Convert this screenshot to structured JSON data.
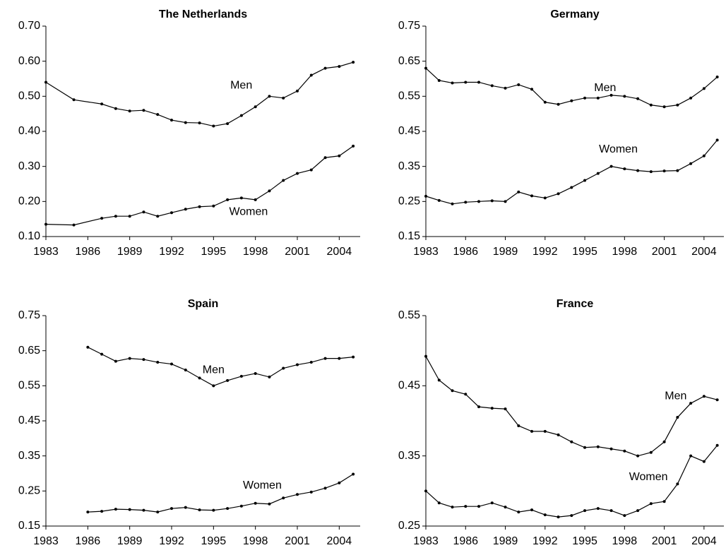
{
  "chart_data": [
    {
      "type": "line",
      "title": "The Netherlands",
      "x": [
        1983,
        1985,
        1987,
        1988,
        1989,
        1990,
        1991,
        1992,
        1993,
        1994,
        1995,
        1996,
        1997,
        1998,
        1999,
        2000,
        2001,
        2002,
        2003,
        2004,
        2005
      ],
      "series": [
        {
          "name": "Men",
          "color": "#000000",
          "values": [
            0.54,
            0.49,
            0.478,
            0.465,
            0.458,
            0.46,
            0.448,
            0.432,
            0.425,
            0.424,
            0.415,
            0.422,
            0.445,
            0.47,
            0.5,
            0.495,
            0.515,
            0.56,
            0.58,
            0.585,
            0.597
          ]
        },
        {
          "name": "Women",
          "color": "#000000",
          "values": [
            0.135,
            0.133,
            0.152,
            0.158,
            0.158,
            0.17,
            0.158,
            0.168,
            0.178,
            0.185,
            0.187,
            0.205,
            0.21,
            0.205,
            0.23,
            0.26,
            0.28,
            0.29,
            0.325,
            0.33,
            0.358
          ]
        }
      ],
      "xlim": [
        1983,
        2005.5
      ],
      "ylim": [
        0.1,
        0.7
      ],
      "xticks": [
        1983,
        1986,
        1989,
        1992,
        1995,
        1998,
        2001,
        2004
      ],
      "yticks": [
        {
          "value": 0.1,
          "label": "0.10"
        },
        {
          "value": 0.2,
          "label": "0.20"
        },
        {
          "value": 0.3,
          "label": "0.30"
        },
        {
          "value": 0.4,
          "label": "0.40"
        },
        {
          "value": 0.5,
          "label": "0.50"
        },
        {
          "value": 0.6,
          "label": "0.60"
        },
        {
          "value": 0.7,
          "label": "0.70"
        }
      ]
    },
    {
      "type": "line",
      "title": "Germany",
      "x": [
        1983,
        1984,
        1985,
        1986,
        1987,
        1988,
        1989,
        1990,
        1991,
        1992,
        1993,
        1994,
        1995,
        1996,
        1997,
        1998,
        1999,
        2000,
        2001,
        2002,
        2003,
        2004,
        2005
      ],
      "series": [
        {
          "name": "Men",
          "color": "#000000",
          "values": [
            0.63,
            0.595,
            0.588,
            0.59,
            0.59,
            0.58,
            0.573,
            0.583,
            0.57,
            0.533,
            0.527,
            0.537,
            0.545,
            0.545,
            0.553,
            0.55,
            0.543,
            0.525,
            0.52,
            0.525,
            0.545,
            0.572,
            0.605
          ]
        },
        {
          "name": "Women",
          "color": "#000000",
          "values": [
            0.265,
            0.253,
            0.243,
            0.248,
            0.25,
            0.252,
            0.25,
            0.277,
            0.266,
            0.26,
            0.272,
            0.29,
            0.31,
            0.33,
            0.35,
            0.343,
            0.338,
            0.335,
            0.337,
            0.338,
            0.358,
            0.38,
            0.425
          ]
        }
      ],
      "xlim": [
        1983,
        2005.5
      ],
      "ylim": [
        0.15,
        0.75
      ],
      "xticks": [
        1983,
        1986,
        1989,
        1992,
        1995,
        1998,
        2001,
        2004
      ],
      "yticks": [
        0.15,
        0.25,
        0.35,
        0.45,
        0.55,
        0.65,
        0.75
      ]
    },
    {
      "type": "line",
      "title": "Spain",
      "x": [
        1986,
        1987,
        1988,
        1989,
        1990,
        1991,
        1992,
        1993,
        1994,
        1995,
        1996,
        1997,
        1998,
        1999,
        2000,
        2001,
        2002,
        2003,
        2004,
        2005
      ],
      "series": [
        {
          "name": "Men",
          "color": "#000000",
          "values": [
            0.66,
            0.64,
            0.62,
            0.628,
            0.625,
            0.617,
            0.612,
            0.595,
            0.572,
            0.55,
            0.565,
            0.577,
            0.585,
            0.575,
            0.6,
            0.61,
            0.617,
            0.628,
            0.628,
            0.632
          ]
        },
        {
          "name": "Women",
          "color": "#000000",
          "values": [
            0.19,
            0.192,
            0.198,
            0.197,
            0.195,
            0.19,
            0.2,
            0.203,
            0.196,
            0.195,
            0.2,
            0.207,
            0.215,
            0.213,
            0.23,
            0.24,
            0.247,
            0.258,
            0.273,
            0.298
          ]
        }
      ],
      "xlim": [
        1983,
        2005.5
      ],
      "ylim": [
        0.15,
        0.75
      ],
      "xticks": [
        1983,
        1986,
        1989,
        1992,
        1995,
        1998,
        2001,
        2004
      ],
      "yticks": [
        0.15,
        0.25,
        0.35,
        0.45,
        0.55,
        0.65,
        0.75
      ]
    },
    {
      "type": "line",
      "title": "France",
      "x": [
        1983,
        1984,
        1985,
        1986,
        1987,
        1988,
        1989,
        1990,
        1991,
        1992,
        1993,
        1994,
        1995,
        1996,
        1997,
        1998,
        1999,
        2000,
        2001,
        2002,
        2003,
        2004,
        2005
      ],
      "series": [
        {
          "name": "Men",
          "color": "#000000",
          "values": [
            0.492,
            0.458,
            0.443,
            0.438,
            0.42,
            0.418,
            0.417,
            0.393,
            0.385,
            0.385,
            0.38,
            0.37,
            0.362,
            0.363,
            0.36,
            0.357,
            0.35,
            0.355,
            0.37,
            0.405,
            0.425,
            0.435,
            0.43
          ]
        },
        {
          "name": "Women",
          "color": "#000000",
          "values": [
            0.3,
            0.283,
            0.277,
            0.278,
            0.278,
            0.283,
            0.277,
            0.27,
            0.273,
            0.266,
            0.263,
            0.265,
            0.272,
            0.275,
            0.272,
            0.265,
            0.272,
            0.282,
            0.285,
            0.31,
            0.35,
            0.342,
            0.365
          ]
        }
      ],
      "xlim": [
        1983,
        2005.5
      ],
      "ylim": [
        0.25,
        0.55
      ],
      "xticks": [
        1983,
        1986,
        1989,
        1992,
        1995,
        1998,
        2001,
        2004
      ],
      "yticks": [
        0.25,
        0.35,
        0.45,
        0.55
      ]
    }
  ]
}
